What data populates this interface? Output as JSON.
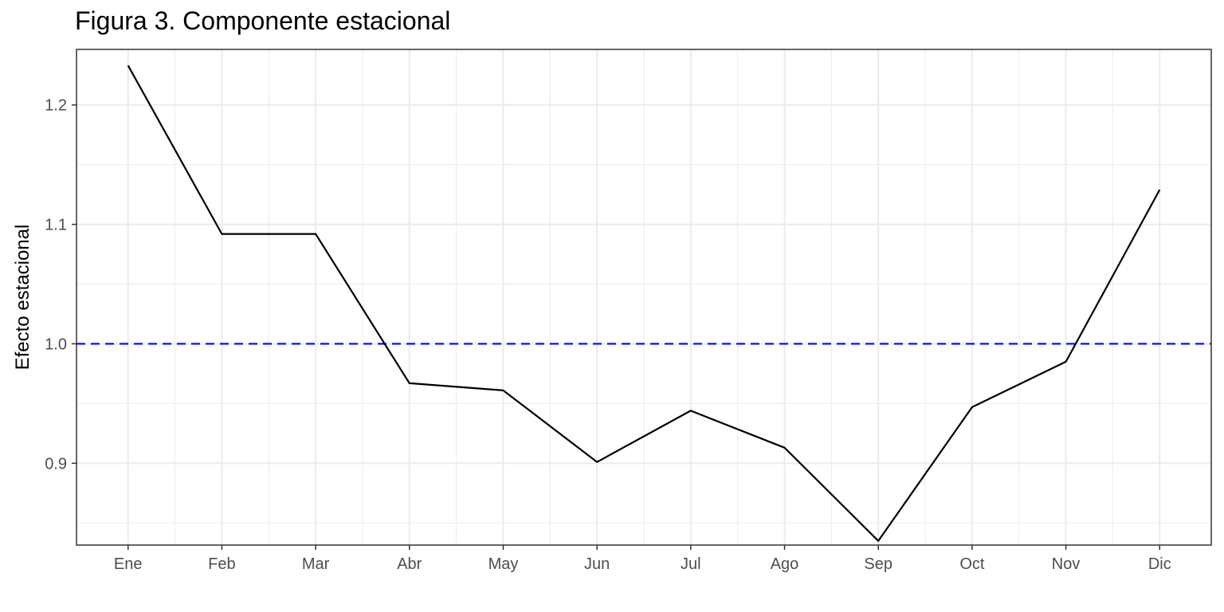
{
  "chart_data": {
    "type": "line",
    "title": "Figura 3. Componente estacional",
    "xlabel": "",
    "ylabel": "Efecto estacional",
    "categories": [
      "Ene",
      "Feb",
      "Mar",
      "Abr",
      "May",
      "Jun",
      "Jul",
      "Ago",
      "Sep",
      "Oct",
      "Nov",
      "Dic"
    ],
    "series": [
      {
        "values": [
          1.233,
          1.092,
          1.092,
          0.967,
          0.961,
          0.901,
          0.944,
          0.913,
          0.835,
          0.947,
          0.985,
          1.129
        ]
      }
    ],
    "reference_line": {
      "y": 1.0,
      "style": "dashed"
    },
    "yticks": [
      0.9,
      1.0,
      1.1,
      1.2
    ],
    "ytick_labels": [
      "0.9",
      "1.0",
      "1.1",
      "1.2"
    ],
    "ylim": [
      0.8315,
      1.2465
    ],
    "grid": true,
    "colors": {
      "series": "#000000",
      "reference_line": "#0000ff",
      "grid": "#ebebeb",
      "panel_border": "#333333"
    }
  }
}
